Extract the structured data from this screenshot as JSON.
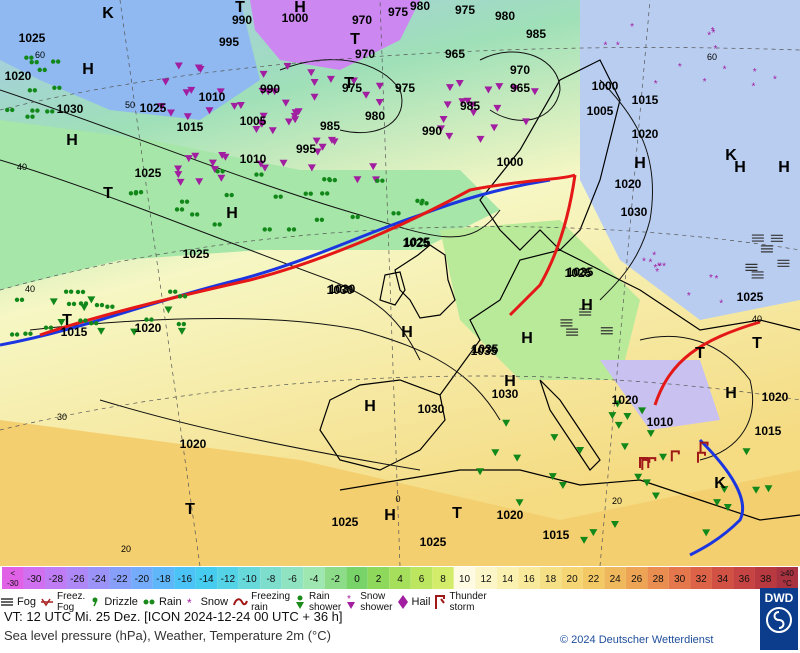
{
  "map": {
    "pressure_labels": [
      "1025",
      "990",
      "1000",
      "970",
      "975",
      "980",
      "975",
      "980",
      "985",
      "995",
      "970",
      "965",
      "1020",
      "1025",
      "1030",
      "1025",
      "1010",
      "990",
      "970",
      "965",
      "975",
      "975",
      "980",
      "985",
      "1000",
      "1005",
      "1015",
      "1020",
      "1005",
      "985",
      "990",
      "995",
      "1000",
      "1010",
      "1015",
      "1020",
      "1025",
      "1025",
      "1030",
      "1030",
      "1025",
      "1035",
      "1025",
      "1015",
      "1020",
      "1035",
      "1030",
      "1030",
      "1020",
      "1020",
      "1010",
      "1015",
      "1020",
      "1025",
      "1015",
      "1025",
      "1020",
      "1035",
      "1030",
      "1025"
    ],
    "systems": [
      "K",
      "H",
      "T",
      "T",
      "H",
      "T",
      "H",
      "T",
      "H",
      "H",
      "H",
      "H",
      "K",
      "H",
      "H",
      "T",
      "H",
      "H",
      "H",
      "T",
      "H",
      "K",
      "T",
      "H",
      "T",
      "T"
    ],
    "degree_labels": [
      "60",
      "50",
      "40",
      "40",
      "30",
      "20",
      "0",
      "20",
      "40",
      "60"
    ]
  },
  "scale": {
    "values": [
      "<\n-30",
      "-30",
      "-28",
      "-26",
      "-24",
      "-22",
      "-20",
      "-18",
      "-16",
      "-14",
      "-12",
      "-10",
      "-8",
      "-6",
      "-4",
      "-2",
      "0",
      "2",
      "4",
      "6",
      "8",
      "10",
      "12",
      "14",
      "16",
      "18",
      "20",
      "22",
      "24",
      "26",
      "28",
      "30",
      "32",
      "34",
      "36",
      "38",
      "≥40\n°C"
    ],
    "colors": [
      "#e060e6",
      "#d070f0",
      "#bf7cf4",
      "#ae88f7",
      "#9b93f8",
      "#889ff9",
      "#74abfa",
      "#5fb7fa",
      "#4cc3f7",
      "#45ccef",
      "#55d3e6",
      "#68d9db",
      "#7ddece",
      "#8fe3c0",
      "#9ee7b0",
      "#8ddc8a",
      "#78d468",
      "#8ed85c",
      "#a6df5c",
      "#bde660",
      "#d3ec6a",
      "#fffbe2",
      "#fcf5c7",
      "#faf0b0",
      "#f8e99b",
      "#f6e086",
      "#f5d574",
      "#f3c966",
      "#f0b85c",
      "#eda455",
      "#e98e50",
      "#e4774c",
      "#dc6248",
      "#d25145",
      "#c64443",
      "#b83a40",
      "#a93240"
    ]
  },
  "legend": {
    "fog": "Fog",
    "freezing_fog": "Freez.\nFog",
    "drizzle": "Drizzle",
    "rain": "Rain",
    "snow": "Snow",
    "freezing_rain": "Freezing\nrain",
    "rain_shower": "Rain\nshower",
    "snow_shower": "Snow\nshower",
    "hail": "Hail",
    "thunderstorm": "Thunder\nstorm"
  },
  "header": {
    "valid_time": "VT: 12 UTC Mi.  25 Dez. [ICON 2024-12-24  00 UTC + 36 h]",
    "description": "Sea level pressure (hPa), Weather, Temperature 2m (°C)",
    "copyright": "© 2024 Deutscher Wetterdienst",
    "logo_text": "DWD"
  },
  "icons": {
    "fog": "fog-icon",
    "freezing_fog": "freezing-fog-icon",
    "drizzle": "drizzle-icon",
    "rain": "rain-icon",
    "snow": "snow-icon",
    "freezing_rain": "freezing-rain-icon",
    "rain_shower": "rain-shower-icon",
    "snow_shower": "snow-shower-icon",
    "hail": "hail-icon",
    "thunderstorm": "thunderstorm-icon"
  }
}
